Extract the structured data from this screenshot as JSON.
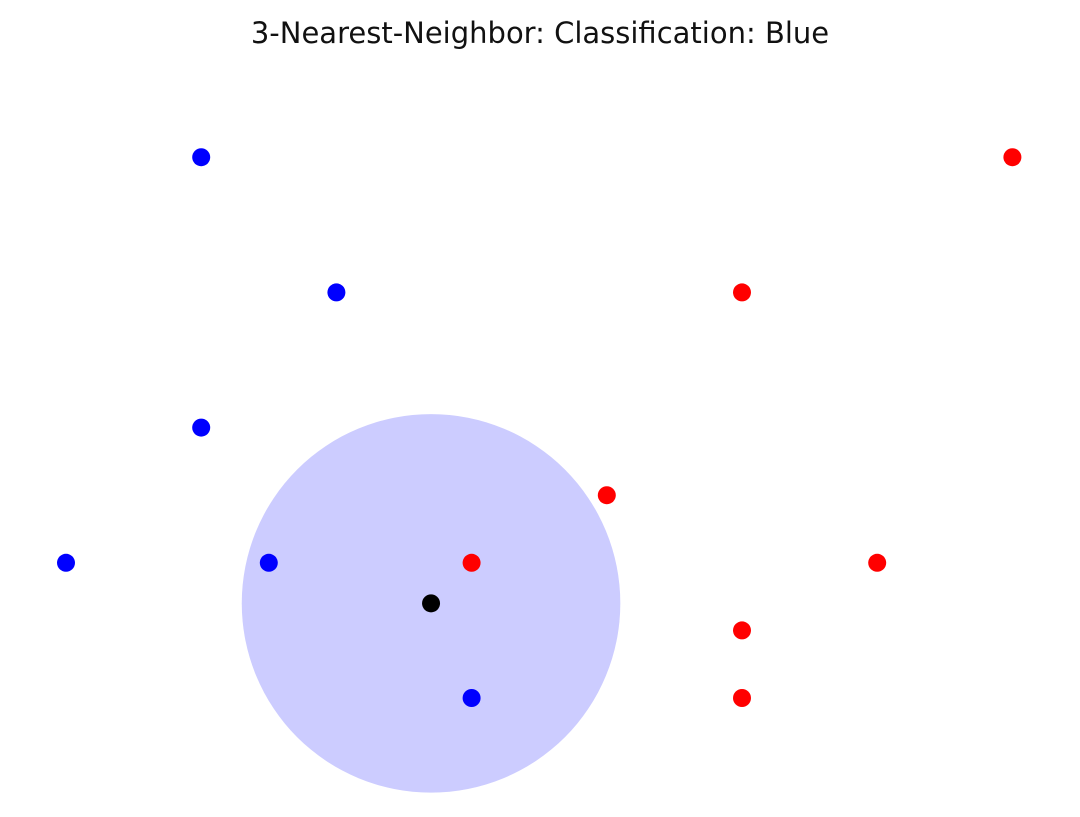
{
  "chart_data": {
    "type": "scatter",
    "title": "3-Nearest-Neighbor: Classification: Blue",
    "xlabel": "",
    "ylabel": "",
    "axes_visible": false,
    "grid": false,
    "xlim": [
      -0.5,
      7.5
    ],
    "ylim": [
      -0.9,
      4.8
    ],
    "series": [
      {
        "color": "#0000ff",
        "points": [
          {
            "x": 1.0,
            "y": 4.0
          },
          {
            "x": 2.0,
            "y": 3.0
          },
          {
            "x": 1.0,
            "y": 2.0
          },
          {
            "x": 0.0,
            "y": 1.0
          },
          {
            "x": 1.5,
            "y": 1.0
          },
          {
            "x": 3.0,
            "y": 0.0
          }
        ]
      },
      {
        "color": "#ff0000",
        "points": [
          {
            "x": 7.0,
            "y": 4.0
          },
          {
            "x": 5.0,
            "y": 3.0
          },
          {
            "x": 4.0,
            "y": 1.5
          },
          {
            "x": 3.0,
            "y": 1.0
          },
          {
            "x": 6.0,
            "y": 1.0
          },
          {
            "x": 5.0,
            "y": 0.5
          },
          {
            "x": 5.0,
            "y": 0.0
          }
        ]
      }
    ],
    "query_point": {
      "x": 2.7,
      "y": 0.7,
      "color": "#000000"
    },
    "neighborhood": {
      "center_x": 2.7,
      "center_y": 0.7,
      "radius": 1.4,
      "color": "#ccccff"
    }
  }
}
